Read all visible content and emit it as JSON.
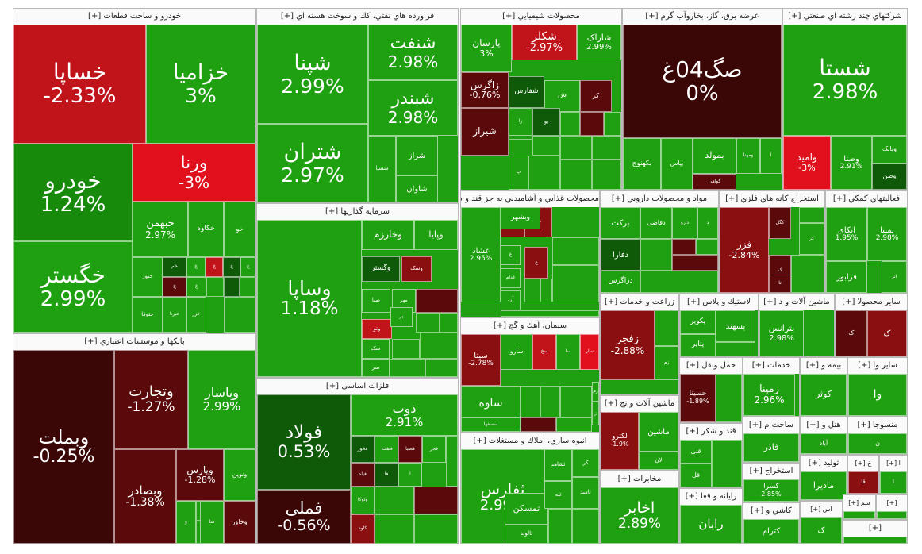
{
  "palette": {
    "g3": "#1fa010",
    "g2": "#178a0c",
    "g1": "#0e5a08",
    "r1": "#5a0a0a",
    "r2": "#8a0f10",
    "r3": "#c0131a",
    "r4": "#e0101c",
    "n": "#3a0606"
  },
  "sectors": [
    {
      "title": "خودرو و ساخت قطعات [+]",
      "tiles": [
        {
          "sym": "خساپا",
          "chg": "-2.33%",
          "c": "r3"
        },
        {
          "sym": "خزامیا",
          "chg": "3%",
          "c": "g3"
        },
        {
          "sym": "خودرو",
          "chg": "1.24%",
          "c": "g2"
        },
        {
          "sym": "ورنا",
          "chg": "-3%",
          "c": "r4"
        },
        {
          "sym": "خگستر",
          "chg": "2.99%",
          "c": "g3"
        },
        {
          "sym": "خبهمن",
          "chg": "2.97%",
          "c": "g3"
        },
        {
          "sym": "خکاوه",
          "chg": "",
          "c": "g3"
        },
        {
          "sym": "خو",
          "chg": "",
          "c": "g3"
        },
        {
          "sym": "خنور",
          "chg": "",
          "c": "g3"
        },
        {
          "sym": "خم",
          "chg": "",
          "c": "g1"
        },
        {
          "sym": "خ",
          "chg": "",
          "c": "g3"
        },
        {
          "sym": "خ",
          "chg": "",
          "c": "r3"
        },
        {
          "sym": "خ",
          "chg": "",
          "c": "g1"
        },
        {
          "sym": "خ",
          "chg": "",
          "c": "g3"
        },
        {
          "sym": "خ",
          "chg": "",
          "c": "r1"
        },
        {
          "sym": "خ",
          "chg": "",
          "c": "g3"
        },
        {
          "sym": "ختوقا",
          "chg": "",
          "c": "g3"
        },
        {
          "sym": "خبرنا",
          "chg": "",
          "c": "g3"
        },
        {
          "sym": "خزر",
          "chg": "",
          "c": "g3"
        }
      ]
    },
    {
      "title": "فراورده هاي نفتي، كك و سوخت هسته اي [+]",
      "tiles": [
        {
          "sym": "شپنا",
          "chg": "2.99%",
          "c": "g3"
        },
        {
          "sym": "شنفت",
          "chg": "2.98%",
          "c": "g3"
        },
        {
          "sym": "شبندر",
          "chg": "2.98%",
          "c": "g3"
        },
        {
          "sym": "شتران",
          "chg": "2.97%",
          "c": "g3"
        },
        {
          "sym": "شراز",
          "chg": "",
          "c": "g3"
        },
        {
          "sym": "شاوان",
          "chg": "",
          "c": "g3"
        },
        {
          "sym": "شسپا",
          "chg": "",
          "c": "g3"
        }
      ]
    },
    {
      "title": "محصولات شيميايي [+]",
      "tiles": [
        {
          "sym": "پارسان",
          "chg": "3%",
          "c": "g3"
        },
        {
          "sym": "شکلر",
          "chg": "-2.97%",
          "c": "r3"
        },
        {
          "sym": "شاراک",
          "chg": "2.99%",
          "c": "g3"
        },
        {
          "sym": "شفارس",
          "chg": "",
          "c": "g1"
        },
        {
          "sym": "زاگرس",
          "chg": "-0.76%",
          "c": "r1"
        },
        {
          "sym": "شیراز",
          "chg": "",
          "c": "r1"
        },
        {
          "sym": "پ",
          "chg": "",
          "c": "g3"
        },
        {
          "sym": "کر",
          "chg": "",
          "c": "r1"
        },
        {
          "sym": "ش",
          "chg": "",
          "c": "g3"
        },
        {
          "sym": "زا",
          "chg": "",
          "c": "g3"
        },
        {
          "sym": "بو",
          "chg": "",
          "c": "g1"
        }
      ]
    },
    {
      "title": "عرضه برق، گاز، بخاروآب گرم [+]",
      "tiles": [
        {
          "sym": "صگ04غ",
          "chg": "0%",
          "c": "n"
        },
        {
          "sym": "بمولد",
          "chg": "",
          "c": "g3"
        },
        {
          "sym": "ومهنا",
          "chg": "",
          "c": "g3"
        },
        {
          "sym": "آ",
          "chg": "",
          "c": "g3"
        },
        {
          "sym": "گواهی",
          "chg": "",
          "c": "r1"
        },
        {
          "sym": "بکهنوج",
          "chg": "",
          "c": "g3"
        },
        {
          "sym": "بپاس",
          "chg": "",
          "c": "g3"
        }
      ]
    },
    {
      "title": "شركتهاي چند رشته اي صنعتي [+]",
      "tiles": [
        {
          "sym": "شستا",
          "chg": "2.98%",
          "c": "g3"
        },
        {
          "sym": "وامید",
          "chg": "-3%",
          "c": "r4"
        },
        {
          "sym": "وصنا",
          "chg": "2.91%",
          "c": "g3"
        },
        {
          "sym": "وبانک",
          "chg": "",
          "c": "g3"
        },
        {
          "sym": "وصن",
          "chg": "",
          "c": "g1"
        }
      ]
    },
    {
      "title": "سرمايه گذاريها [+]",
      "tiles": [
        {
          "sym": "وساپا",
          "chg": "1.18%",
          "c": "g3"
        },
        {
          "sym": "وخارزم",
          "chg": "",
          "c": "g3"
        },
        {
          "sym": "وپایا",
          "chg": "",
          "c": "g3"
        },
        {
          "sym": "وسک",
          "chg": "",
          "c": "r2"
        },
        {
          "sym": "وگستر",
          "chg": "",
          "c": "g1"
        },
        {
          "sym": "مهر",
          "chg": "",
          "c": "g3"
        },
        {
          "sym": "صبا",
          "chg": "",
          "c": "g3"
        },
        {
          "sym": "وتو",
          "chg": "",
          "c": "r3"
        },
        {
          "sym": "سک",
          "chg": "",
          "c": "g3"
        },
        {
          "sym": "سر",
          "chg": "",
          "c": "g3"
        },
        {
          "sym": "ير",
          "chg": "",
          "c": "g3"
        }
      ]
    },
    {
      "title": "محصولات غذايي و آشاميدني به جز قند و شكر [+]",
      "tiles": [
        {
          "sym": "غشاد",
          "chg": "2.95%",
          "c": "g3"
        },
        {
          "sym": "غویتا",
          "chg": "",
          "c": "r2"
        },
        {
          "sym": "غد",
          "chg": "",
          "c": "r2"
        },
        {
          "sym": "وبشهر",
          "chg": "",
          "c": "g3"
        },
        {
          "sym": "غ",
          "chg": "",
          "c": "g3"
        },
        {
          "sym": "غدام",
          "chg": "",
          "c": "g3"
        },
        {
          "sym": "آرد",
          "chg": "",
          "c": "g3"
        },
        {
          "sym": "غ",
          "chg": "",
          "c": "r2"
        }
      ]
    },
    {
      "title": "مواد و محصولات دارويي [+]",
      "tiles": [
        {
          "sym": "برکت",
          "chg": "",
          "c": "g3"
        },
        {
          "sym": "دقاضی",
          "chg": "",
          "c": "g3"
        },
        {
          "sym": "دارو",
          "chg": "",
          "c": "g3"
        },
        {
          "sym": "د",
          "chg": "",
          "c": "g3"
        },
        {
          "sym": "دفارا",
          "chg": "",
          "c": "g1"
        },
        {
          "sym": "دزاگرس",
          "chg": "",
          "c": "g3"
        }
      ]
    },
    {
      "title": "استخراج كانه هاي فلزي [+]",
      "tiles": [
        {
          "sym": "فزر",
          "chg": "-2.84%",
          "c": "r2"
        },
        {
          "sym": "کگل",
          "chg": "",
          "c": "r1"
        },
        {
          "sym": "کر",
          "chg": "",
          "c": "g3"
        },
        {
          "sym": "ک",
          "chg": "",
          "c": "r1"
        },
        {
          "sym": "تا",
          "chg": "",
          "c": "r1"
        }
      ]
    },
    {
      "title": "فعاليتهاي كمكي [+]",
      "tiles": [
        {
          "sym": "اتکای",
          "chg": "1.95%",
          "c": "g3"
        },
        {
          "sym": "بمپنا",
          "chg": "2.98%",
          "c": "g3"
        },
        {
          "sym": "فرابور",
          "chg": "",
          "c": "g3"
        },
        {
          "sym": "انر",
          "chg": "",
          "c": "g3"
        }
      ]
    },
    {
      "title": "بانكها و موسسات اعتباري [+]",
      "tiles": [
        {
          "sym": "وبملت",
          "chg": "-0.25%",
          "c": "n"
        },
        {
          "sym": "وتجارت",
          "chg": "-1.27%",
          "c": "r1"
        },
        {
          "sym": "وبصادر",
          "chg": "-1.38%",
          "c": "r1"
        },
        {
          "sym": "وپاسار",
          "chg": "2.99%",
          "c": "g3"
        },
        {
          "sym": "وپارس",
          "chg": "-1.28%",
          "c": "r1"
        },
        {
          "sym": "ونوین",
          "chg": "",
          "c": "g3"
        },
        {
          "sym": "و",
          "chg": "",
          "c": "g3"
        },
        {
          "sym": "سا",
          "chg": "",
          "c": "g3"
        },
        {
          "sym": "وخاور",
          "chg": "",
          "c": "r1"
        }
      ]
    },
    {
      "title": "فلزات اساسي [+]",
      "tiles": [
        {
          "sym": "فولاد",
          "chg": "0.53%",
          "c": "g1"
        },
        {
          "sym": "فملی",
          "chg": "-0.56%",
          "c": "n"
        },
        {
          "sym": "ذوب",
          "chg": "2.91%",
          "c": "g3"
        },
        {
          "sym": "فخوز",
          "chg": "",
          "c": "g1"
        },
        {
          "sym": "فنفت",
          "chg": "",
          "c": "g3"
        },
        {
          "sym": "فصبا",
          "chg": "",
          "c": "r1"
        },
        {
          "sym": "فجر",
          "chg": "",
          "c": "g3"
        },
        {
          "sym": "فباه",
          "chg": "",
          "c": "r1"
        },
        {
          "sym": "فا",
          "chg": "",
          "c": "g1"
        },
        {
          "sym": "آ",
          "chg": "",
          "c": "g3"
        },
        {
          "sym": "وتوکا",
          "chg": "",
          "c": "g3"
        },
        {
          "sym": "کاوه",
          "chg": "",
          "c": "r2"
        }
      ]
    },
    {
      "title": "سيمان، آهك و گچ [+]",
      "tiles": [
        {
          "sym": "سیتا",
          "chg": "-2.78%",
          "c": "r2"
        },
        {
          "sym": "سارو",
          "chg": "",
          "c": "g3"
        },
        {
          "sym": "سخ",
          "chg": "",
          "c": "r3"
        },
        {
          "sym": "سا",
          "chg": "",
          "c": "g3"
        },
        {
          "sym": "سار",
          "chg": "",
          "c": "r4"
        },
        {
          "sym": "ساوه",
          "chg": "",
          "c": "g3"
        },
        {
          "sym": "سصفها",
          "chg": "",
          "c": "g3"
        },
        {
          "sym": "زم",
          "chg": "",
          "c": "g3"
        },
        {
          "sym": "ز",
          "chg": "",
          "c": "g3"
        }
      ]
    },
    {
      "title": "انبوه سازي، املاك و مستغلات [+]",
      "tiles": [
        {
          "sym": "ثفارس",
          "chg": "2.99%",
          "c": "g3"
        },
        {
          "sym": "ثشاهد",
          "chg": "",
          "c": "g3"
        },
        {
          "sym": "ثمسکن",
          "chg": "",
          "c": "g3"
        },
        {
          "sym": "ثالوند",
          "chg": "",
          "c": "g3"
        },
        {
          "sym": "ثامید",
          "chg": "",
          "c": "g3"
        },
        {
          "sym": "ثاخت",
          "chg": "",
          "c": "g3"
        },
        {
          "sym": "ثبه",
          "chg": "",
          "c": "g3"
        },
        {
          "sym": "کر",
          "chg": "",
          "c": "g3"
        }
      ]
    },
    {
      "title": "زراعت و خدمات [+]",
      "tiles": [
        {
          "sym": "زفجر",
          "chg": "-2.88%",
          "c": "r2"
        },
        {
          "sym": "زم",
          "chg": "",
          "c": "g3"
        }
      ]
    },
    {
      "title": "ماشين آلات و تج [+]",
      "tiles": [
        {
          "sym": "لکترو",
          "chg": "-1.9%",
          "c": "r2"
        },
        {
          "sym": "ماشین",
          "chg": "",
          "c": "g3"
        },
        {
          "sym": "لان",
          "chg": "",
          "c": "g3"
        }
      ]
    },
    {
      "title": "مخابرات [+]",
      "tiles": [
        {
          "sym": "اخابر",
          "chg": "2.89%",
          "c": "g3"
        }
      ]
    },
    {
      "title": "لاستيك و پلاس [+]",
      "tiles": [
        {
          "sym": "پکویر",
          "chg": "",
          "c": "g3"
        },
        {
          "sym": "پتایر",
          "chg": "",
          "c": "g3"
        },
        {
          "sym": "پسهند",
          "chg": "",
          "c": "g3"
        }
      ]
    },
    {
      "title": "ماشين آلات و د [+]",
      "tiles": [
        {
          "sym": "بترانس",
          "chg": "2.98%",
          "c": "g3"
        }
      ]
    },
    {
      "title": "ساير محصولا [+]",
      "tiles": [
        {
          "sym": "ک",
          "chg": "",
          "c": "r1"
        },
        {
          "sym": "ک",
          "chg": "",
          "c": "r2"
        }
      ]
    },
    {
      "title": "حمل ونقل [+]",
      "tiles": [
        {
          "sym": "حسینا",
          "chg": "-1.89%",
          "c": "r1"
        }
      ]
    },
    {
      "title": "خدمات [+]",
      "tiles": [
        {
          "sym": "رمپنا",
          "chg": "2.96%",
          "c": "g3"
        }
      ]
    },
    {
      "title": "بيمه و [+]",
      "tiles": [
        {
          "sym": "کوثر",
          "chg": "",
          "c": "g3"
        }
      ]
    },
    {
      "title": "ساير وا [+]",
      "tiles": [
        {
          "sym": "وا",
          "chg": "",
          "c": "g3"
        }
      ]
    },
    {
      "title": "قند و شكر [+]",
      "tiles": [
        {
          "sym": "قنی",
          "chg": "",
          "c": "g3"
        },
        {
          "sym": "قل",
          "chg": "",
          "c": "g3"
        }
      ]
    },
    {
      "title": "ساخت م [+]",
      "tiles": [
        {
          "sym": "فاذر",
          "chg": "",
          "c": "g3"
        }
      ]
    },
    {
      "title": "هتل و [+]",
      "tiles": [
        {
          "sym": "آباد",
          "chg": "",
          "c": "g3"
        }
      ]
    },
    {
      "title": "منسوجا [+]",
      "tiles": [
        {
          "sym": "ن",
          "chg": "",
          "c": "g3"
        }
      ]
    },
    {
      "title": "رايانه و فعا [+]",
      "tiles": [
        {
          "sym": "رایان",
          "chg": "",
          "c": "g3"
        }
      ]
    },
    {
      "title": "استخراج [+]",
      "tiles": [
        {
          "sym": "کسرا",
          "chg": "2.85%",
          "c": "g3"
        }
      ]
    },
    {
      "title": "توليد [+]",
      "tiles": [
        {
          "sym": "مادیرا",
          "chg": "",
          "c": "g3"
        }
      ]
    },
    {
      "title": "خ [+]",
      "tiles": [
        {
          "sym": "قا",
          "chg": "",
          "c": "r2"
        }
      ]
    },
    {
      "title": "ا [+]",
      "tiles": [
        {
          "sym": "ا",
          "chg": "",
          "c": "g3"
        }
      ]
    },
    {
      "title": "كاشي و [+]",
      "tiles": [
        {
          "sym": "کترام",
          "chg": "",
          "c": "g3"
        }
      ]
    },
    {
      "title": "اس [+]",
      "tiles": [
        {
          "sym": "ک",
          "chg": "",
          "c": "g3"
        }
      ]
    },
    {
      "title": "سم [+]",
      "tiles": [
        {
          "sym": "",
          "chg": "",
          "c": "g3"
        }
      ]
    },
    {
      "title": "[+]",
      "tiles": [
        {
          "sym": "",
          "chg": "",
          "c": "g3"
        }
      ]
    },
    {
      "title": "[+]",
      "tiles": [
        {
          "sym": "",
          "chg": "",
          "c": "g3"
        }
      ]
    }
  ]
}
